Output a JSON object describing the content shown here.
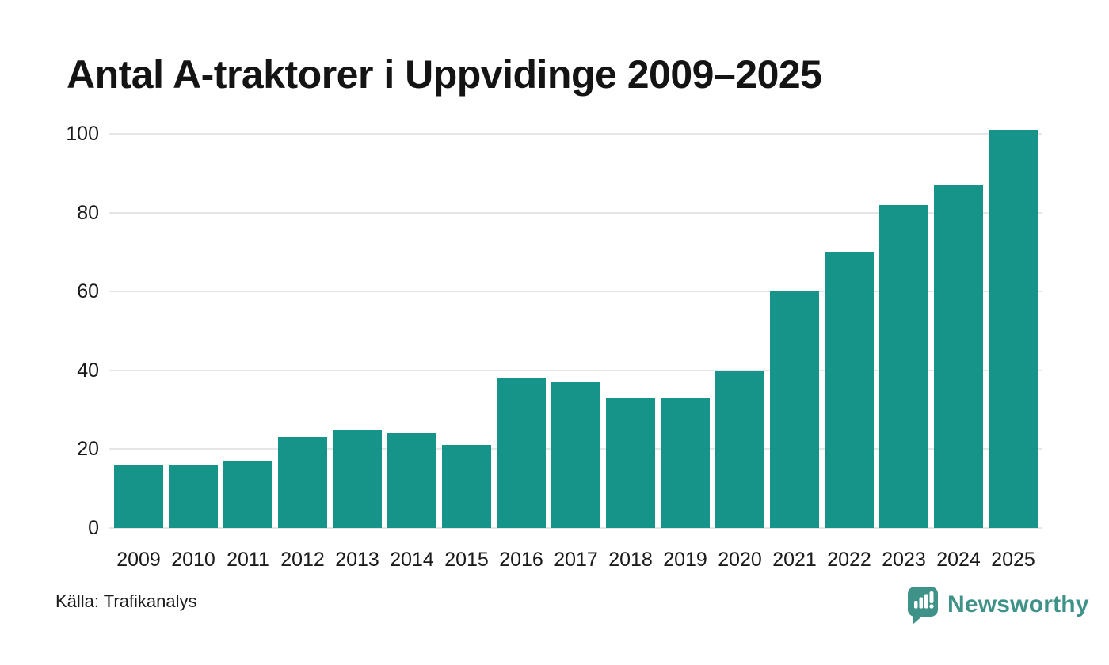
{
  "chart_data": {
    "type": "bar",
    "title": "Antal A-traktorer i Uppvidinge 2009–2025",
    "categories": [
      "2009",
      "2010",
      "2011",
      "2012",
      "2013",
      "2014",
      "2015",
      "2016",
      "2017",
      "2018",
      "2019",
      "2020",
      "2021",
      "2022",
      "2023",
      "2024",
      "2025"
    ],
    "values": [
      16,
      16,
      17,
      23,
      25,
      24,
      21,
      38,
      37,
      33,
      33,
      40,
      60,
      70,
      82,
      87,
      101
    ],
    "xlabel": "",
    "ylabel": "",
    "ylim": [
      0,
      100
    ],
    "yticks": [
      0,
      20,
      40,
      60,
      80,
      100
    ],
    "grid": true,
    "legend_position": "none",
    "bar_color": "#16948a",
    "gridline_color": "#e6e6e6",
    "axis_text_color": "#1a1a1a"
  },
  "footer": {
    "source": "Källa: Trafikanalys",
    "brand": "Newsworthy",
    "brand_color": "#3e9287"
  }
}
